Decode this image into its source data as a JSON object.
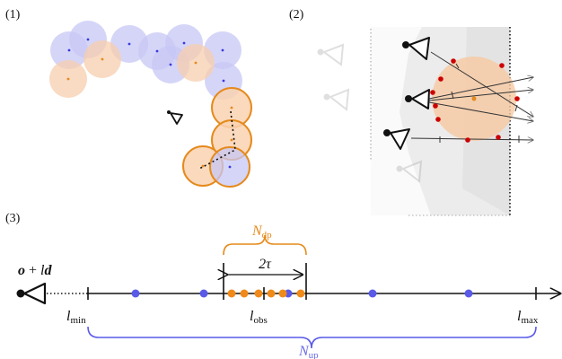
{
  "panels": {
    "p1": {
      "label": "(1)"
    },
    "p2": {
      "label": "(2)"
    },
    "p3": {
      "label": "(3)"
    }
  },
  "ray": {
    "expr_main": "o",
    "expr_plus": " + ",
    "expr_l": "l",
    "expr_d": "d",
    "lmin_base": "l",
    "lmin_sub": "min",
    "lobs_base": "l",
    "lobs_sub": "obs",
    "lmax_base": "l",
    "lmax_sub": "max",
    "tau": "2τ",
    "ndp_base": "N",
    "ndp_sub": "dp",
    "nup_base": "N",
    "nup_sub": "up"
  },
  "colors": {
    "blue_fill": "#c9c9f7",
    "orange_fill": "#f9d3b4",
    "orange": "#e58a1c",
    "blue": "#5a5ae8",
    "red": "#cc0000"
  }
}
